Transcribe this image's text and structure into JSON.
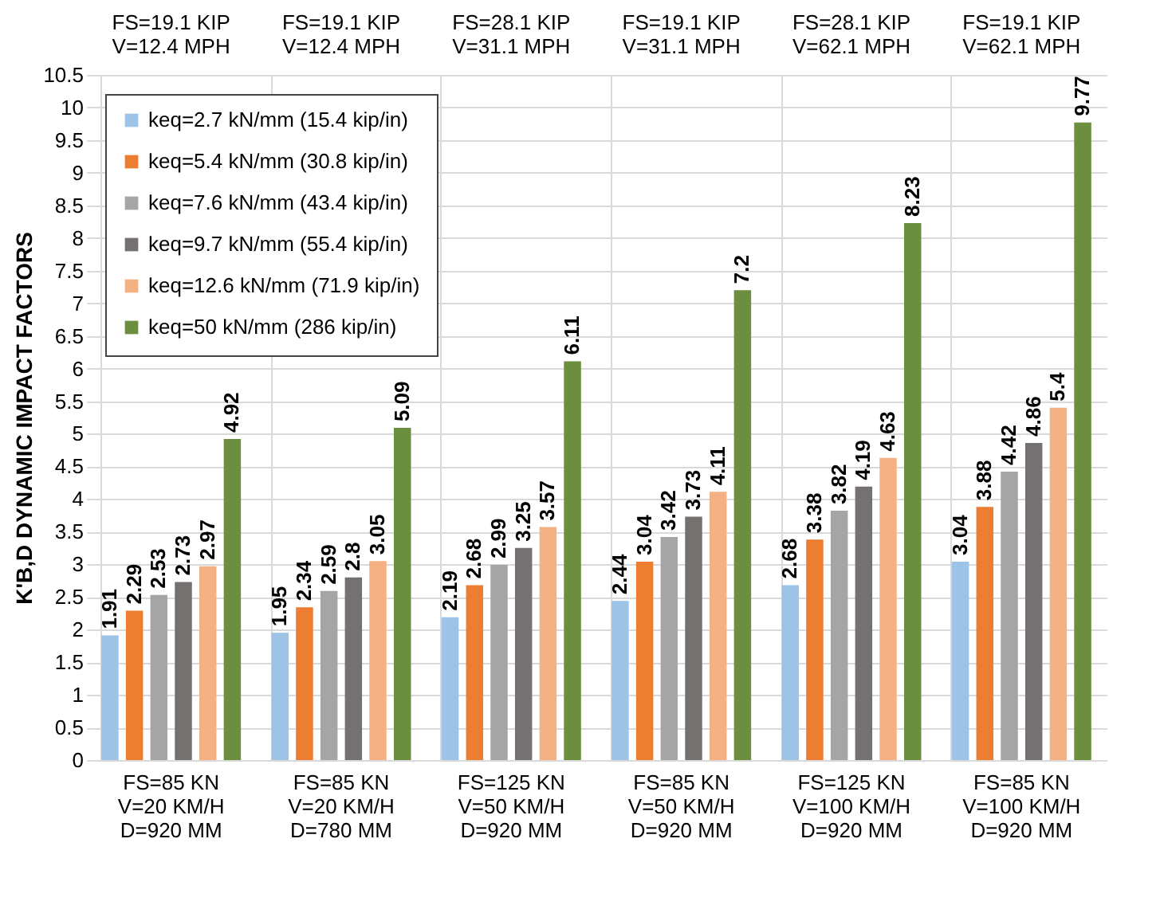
{
  "chart_data": {
    "type": "bar",
    "ylabel": "K'B,D DYNAMIC IMPACT FACTORS",
    "categories": [
      "FS=85 KN\nV=20 KM/H\nD=920 MM",
      "FS=85 KN\nV=20 KM/H\nD=780 MM",
      "FS=125 KN\nV=50 KM/H\nD=920 MM",
      "FS=85 KN\nV=50 KM/H\nD=920 MM",
      "FS=125 KN\nV=100 KM/H\nD=920 MM",
      "FS=85 KN\nV=100 KM/H\nD=920 MM"
    ],
    "series": [
      {
        "name": "keq=2.7 kN/mm (15.4 kip/in)",
        "color": "#9dc3e6",
        "values": [
          1.91,
          1.95,
          2.19,
          2.44,
          2.68,
          3.04
        ]
      },
      {
        "name": "keq=5.4 kN/mm (30.8 kip/in)",
        "color": "#ed7d31",
        "values": [
          2.29,
          2.34,
          2.68,
          3.04,
          3.38,
          3.88
        ]
      },
      {
        "name": "keq=7.6 kN/mm (43.4 kip/in)",
        "color": "#a5a5a5",
        "values": [
          2.53,
          2.59,
          2.99,
          3.42,
          3.82,
          4.42
        ]
      },
      {
        "name": "keq=9.7 kN/mm (55.4 kip/in)",
        "color": "#767171",
        "values": [
          2.73,
          2.8,
          3.25,
          3.73,
          4.19,
          4.86
        ]
      },
      {
        "name": "keq=12.6 kN/mm (71.9 kip/in)",
        "color": "#f4b183",
        "values": [
          2.97,
          3.05,
          3.57,
          4.11,
          4.63,
          5.4
        ]
      },
      {
        "name": "keq=50 kN/mm (286 kip/in)",
        "color": "#6b8e3f",
        "values": [
          4.92,
          5.09,
          6.11,
          7.2,
          8.23,
          9.77
        ]
      }
    ],
    "ylim": [
      0,
      10.5
    ],
    "yticks": [
      0,
      0.5,
      1,
      1.5,
      2,
      2.5,
      3,
      3.5,
      4,
      4.5,
      5,
      5.5,
      6,
      6.5,
      7,
      7.5,
      8,
      8.5,
      9,
      9.5,
      10,
      10.5
    ],
    "data_labels": true,
    "grid": true,
    "legend": "top left",
    "annotations": [
      "FS=19.1 KIP\nV=12.4 MPH",
      "FS=19.1 KIP\nV=12.4 MPH",
      "FS=28.1 KIP\nV=31.1 MPH",
      "FS=19.1 KIP\nV=31.1 MPH",
      "FS=28.1 KIP\nV=62.1 MPH",
      "FS=19.1 KIP\nV=62.1 MPH"
    ]
  }
}
